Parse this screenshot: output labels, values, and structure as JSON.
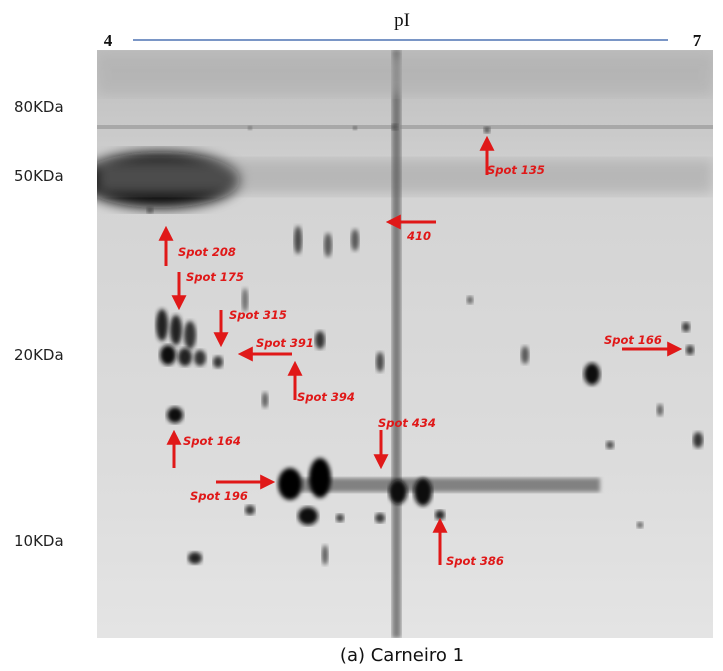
{
  "header": {
    "ph_start": "4",
    "axis_label": "pI",
    "ph_end": "7"
  },
  "mw_markers": [
    "80KDa",
    "50KDa",
    "20KDa",
    "10KDa"
  ],
  "spots": [
    "Spot 135",
    "410",
    "Spot 208",
    "Spot 175",
    "Spot 315",
    "Spot 391",
    "Spot 394",
    "Spot 164",
    "Spot 434",
    "Spot 196",
    "Spot 386",
    "Spot 166"
  ],
  "caption": "(a) Carneiro 1"
}
